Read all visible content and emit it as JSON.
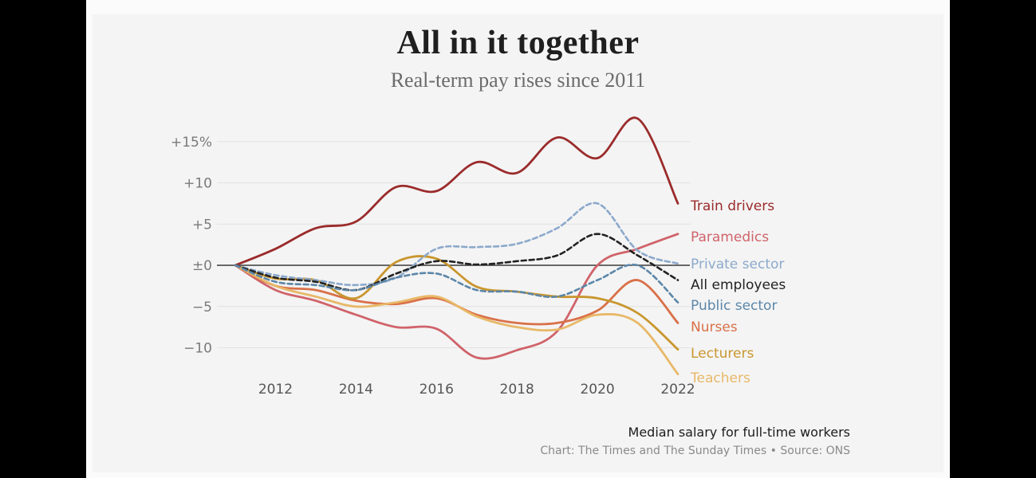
{
  "header": {
    "title": "All in it together",
    "subtitle": "Real-term pay rises since 2011"
  },
  "footer": {
    "note": "Median salary for full-time workers",
    "credit": "Chart: The Times and The Sunday Times • Source: ONS"
  },
  "chart_data": {
    "type": "line",
    "title": "All in it together",
    "subtitle": "Real-term pay rises since 2011",
    "xlim": [
      2011,
      2022
    ],
    "ylim": [
      -12,
      18
    ],
    "x_ticks": [
      2012,
      2014,
      2016,
      2018,
      2020,
      2022
    ],
    "x_tick_labels": [
      "2012",
      "2014",
      "2016",
      "2018",
      "2020",
      "2022"
    ],
    "y_ticks": [
      15,
      10,
      5,
      0,
      -5,
      -10
    ],
    "y_tick_labels": [
      "+15%",
      "+10",
      "+5",
      "±0",
      "−5",
      "−10"
    ],
    "grid": true,
    "legend": "direct labels at right end of lines",
    "x": [
      2011,
      2012,
      2013,
      2014,
      2015,
      2016,
      2017,
      2018,
      2019,
      2020,
      2021,
      2022
    ],
    "series": [
      {
        "name": "Train drivers",
        "color": "#9b2b2b",
        "dashed": false,
        "values": [
          0,
          2,
          4.5,
          5.3,
          9.5,
          9,
          12.5,
          11.2,
          15.5,
          13,
          17.8,
          7.5
        ]
      },
      {
        "name": "Paramedics",
        "color": "#d0636a",
        "dashed": false,
        "values": [
          0,
          -3,
          -4.3,
          -6,
          -7.5,
          -7.7,
          -11.2,
          -10.3,
          -8,
          0,
          2,
          3.8
        ]
      },
      {
        "name": "Private sector",
        "color": "#8ca9cc",
        "dashed": true,
        "values": [
          0,
          -1.2,
          -1.8,
          -2.4,
          -1.5,
          2,
          2.2,
          2.6,
          4.5,
          7.5,
          1.8,
          0.2
        ]
      },
      {
        "name": "All employees",
        "color": "#222222",
        "dashed": true,
        "values": [
          0,
          -1.5,
          -2,
          -3,
          -1,
          0.5,
          0.1,
          0.5,
          1.2,
          3.8,
          1.2,
          -1.8
        ]
      },
      {
        "name": "Public sector",
        "color": "#5c86a8",
        "dashed": true,
        "values": [
          0,
          -2,
          -2.4,
          -3,
          -1.5,
          -1,
          -3,
          -3.2,
          -3.8,
          -1.8,
          0,
          -4.5
        ]
      },
      {
        "name": "Nurses",
        "color": "#d97048",
        "dashed": false,
        "values": [
          0,
          -2.5,
          -3,
          -4.3,
          -4.7,
          -4,
          -6,
          -7,
          -7,
          -5.5,
          -1.8,
          -7
        ]
      },
      {
        "name": "Lecturers",
        "color": "#c9962e",
        "dashed": false,
        "values": [
          0,
          -1.6,
          -1.8,
          -4,
          0.4,
          0.8,
          -2.6,
          -3.2,
          -3.8,
          -4,
          -5.8,
          -10.2
        ]
      },
      {
        "name": "Teachers",
        "color": "#e8b868",
        "dashed": false,
        "values": [
          0,
          -2.5,
          -3.8,
          -5,
          -4.5,
          -3.8,
          -6.2,
          -7.5,
          -7.8,
          -6,
          -7,
          -13.2
        ]
      }
    ]
  }
}
